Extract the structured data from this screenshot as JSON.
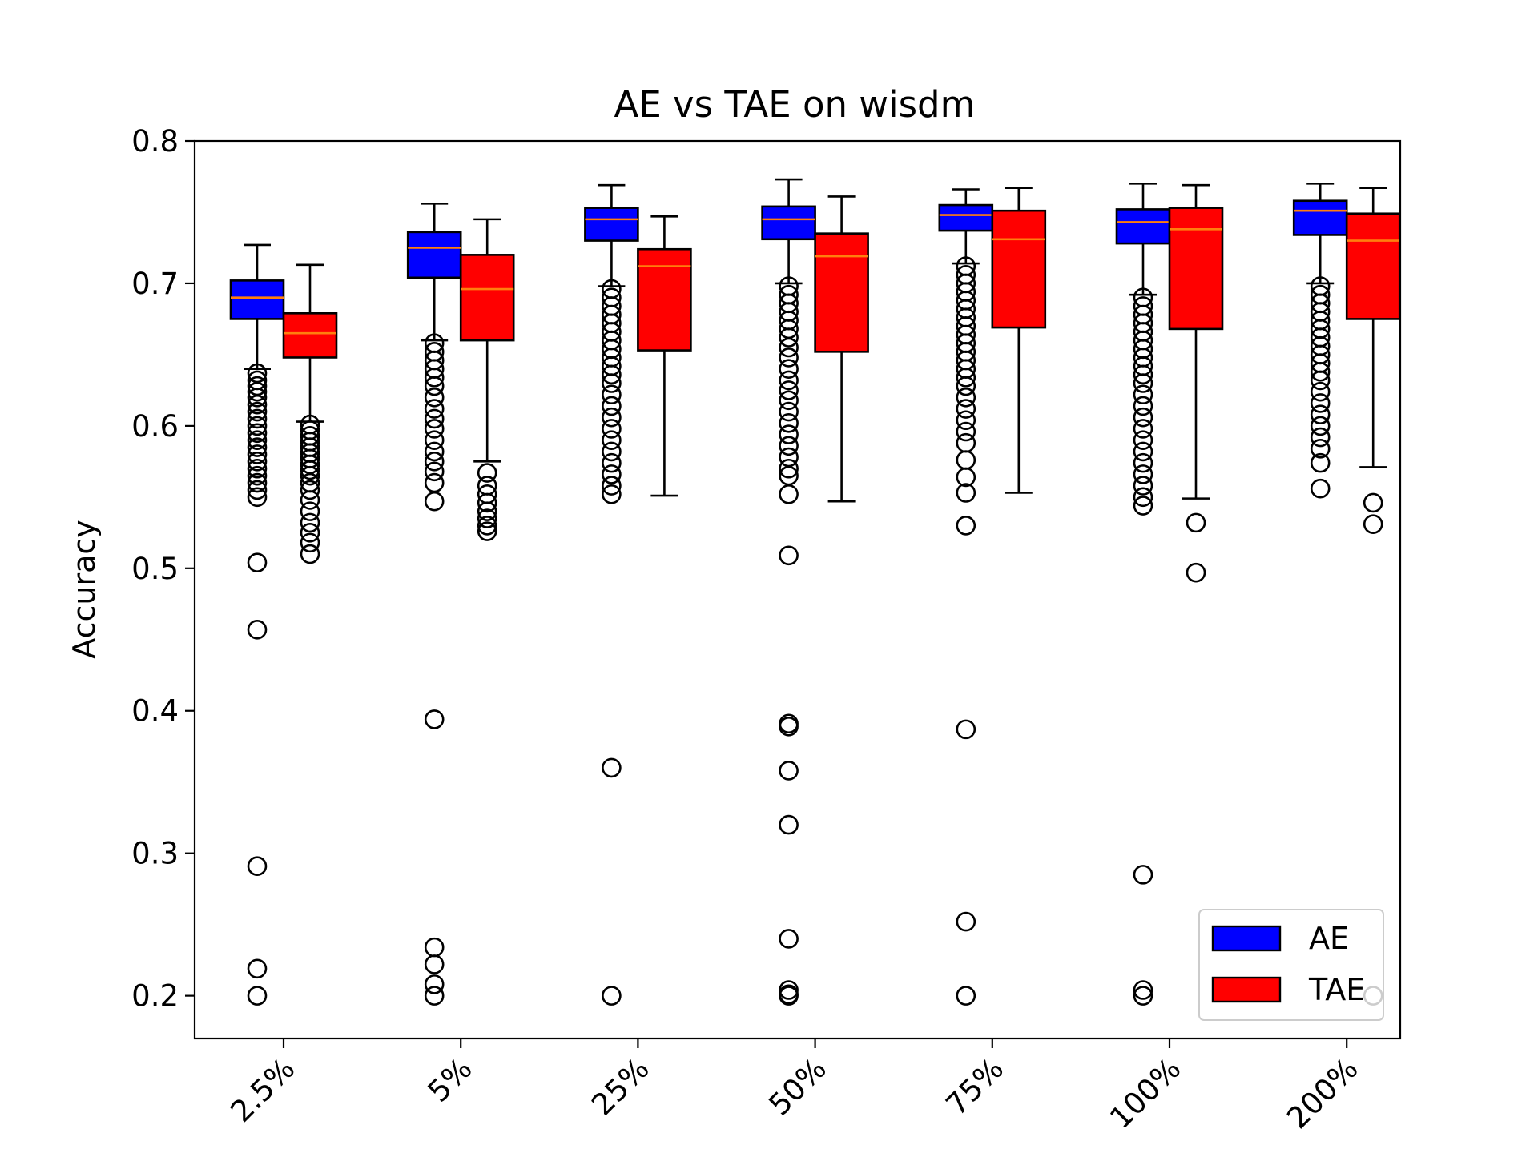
{
  "chart_data": {
    "type": "boxplot",
    "title": "AE vs TAE on wisdm",
    "xlabel": "",
    "ylabel": "Accuracy",
    "ylim": [
      0.17,
      0.8
    ],
    "yticks": [
      0.2,
      0.3,
      0.4,
      0.5,
      0.6,
      0.7,
      0.8
    ],
    "ytick_labels": [
      "0.2",
      "0.3",
      "0.4",
      "0.5",
      "0.6",
      "0.7",
      "0.8"
    ],
    "categories": [
      "2.5%",
      "5%",
      "25%",
      "50%",
      "75%",
      "100%",
      "200%"
    ],
    "grid": false,
    "legend_position": "bottom-right",
    "series": [
      {
        "name": "AE",
        "color": "#0000ff",
        "boxes": [
          {
            "whislo": 0.64,
            "q1": 0.675,
            "med": 0.69,
            "q3": 0.702,
            "whishi": 0.727,
            "fliers": [
              0.637,
              0.632,
              0.628,
              0.624,
              0.62,
              0.615,
              0.61,
              0.605,
              0.6,
              0.595,
              0.59,
              0.585,
              0.58,
              0.575,
              0.57,
              0.565,
              0.56,
              0.555,
              0.55,
              0.504,
              0.457,
              0.291,
              0.219,
              0.2
            ]
          },
          {
            "whislo": 0.66,
            "q1": 0.704,
            "med": 0.725,
            "q3": 0.736,
            "whishi": 0.756,
            "fliers": [
              0.658,
              0.652,
              0.646,
              0.64,
              0.634,
              0.628,
              0.62,
              0.612,
              0.605,
              0.598,
              0.59,
              0.582,
              0.575,
              0.568,
              0.56,
              0.547,
              0.394,
              0.234,
              0.222,
              0.208,
              0.2
            ]
          },
          {
            "whislo": 0.698,
            "q1": 0.73,
            "med": 0.745,
            "q3": 0.753,
            "whishi": 0.769,
            "fliers": [
              0.696,
              0.69,
              0.684,
              0.678,
              0.672,
              0.666,
              0.66,
              0.654,
              0.648,
              0.642,
              0.636,
              0.63,
              0.622,
              0.614,
              0.606,
              0.598,
              0.59,
              0.582,
              0.574,
              0.566,
              0.558,
              0.552,
              0.36,
              0.2
            ]
          },
          {
            "whislo": 0.7,
            "q1": 0.731,
            "med": 0.745,
            "q3": 0.754,
            "whishi": 0.773,
            "fliers": [
              0.698,
              0.692,
              0.686,
              0.68,
              0.674,
              0.668,
              0.662,
              0.655,
              0.648,
              0.64,
              0.632,
              0.625,
              0.618,
              0.61,
              0.602,
              0.594,
              0.586,
              0.578,
              0.57,
              0.565,
              0.552,
              0.509,
              0.391,
              0.389,
              0.358,
              0.32,
              0.24,
              0.204,
              0.201,
              0.2
            ]
          },
          {
            "whislo": 0.714,
            "q1": 0.737,
            "med": 0.748,
            "q3": 0.755,
            "whishi": 0.766,
            "fliers": [
              0.712,
              0.706,
              0.7,
              0.694,
              0.688,
              0.682,
              0.676,
              0.67,
              0.664,
              0.658,
              0.652,
              0.646,
              0.64,
              0.634,
              0.628,
              0.62,
              0.612,
              0.604,
              0.596,
              0.588,
              0.576,
              0.564,
              0.553,
              0.53,
              0.387,
              0.252,
              0.2
            ]
          },
          {
            "whislo": 0.692,
            "q1": 0.728,
            "med": 0.743,
            "q3": 0.752,
            "whishi": 0.77,
            "fliers": [
              0.69,
              0.684,
              0.678,
              0.672,
              0.666,
              0.66,
              0.654,
              0.648,
              0.642,
              0.636,
              0.63,
              0.622,
              0.614,
              0.606,
              0.598,
              0.59,
              0.582,
              0.574,
              0.566,
              0.558,
              0.55,
              0.544,
              0.285,
              0.204,
              0.2
            ]
          },
          {
            "whislo": 0.7,
            "q1": 0.734,
            "med": 0.751,
            "q3": 0.758,
            "whishi": 0.77,
            "fliers": [
              0.698,
              0.692,
              0.686,
              0.68,
              0.674,
              0.668,
              0.662,
              0.656,
              0.65,
              0.644,
              0.638,
              0.632,
              0.624,
              0.616,
              0.608,
              0.6,
              0.592,
              0.584,
              0.574,
              0.556
            ]
          }
        ]
      },
      {
        "name": "TAE",
        "color": "#ff0000",
        "boxes": [
          {
            "whislo": 0.603,
            "q1": 0.648,
            "med": 0.665,
            "q3": 0.679,
            "whishi": 0.713,
            "fliers": [
              0.601,
              0.597,
              0.593,
              0.589,
              0.585,
              0.581,
              0.577,
              0.573,
              0.569,
              0.565,
              0.56,
              0.555,
              0.548,
              0.54,
              0.532,
              0.525,
              0.518,
              0.51
            ]
          },
          {
            "whislo": 0.575,
            "q1": 0.66,
            "med": 0.696,
            "q3": 0.72,
            "whishi": 0.745,
            "fliers": [
              0.567,
              0.558,
              0.552,
              0.546,
              0.54,
              0.535,
              0.53,
              0.526
            ]
          },
          {
            "whislo": 0.551,
            "q1": 0.653,
            "med": 0.712,
            "q3": 0.724,
            "whishi": 0.747,
            "fliers": []
          },
          {
            "whislo": 0.547,
            "q1": 0.652,
            "med": 0.719,
            "q3": 0.735,
            "whishi": 0.761,
            "fliers": []
          },
          {
            "whislo": 0.553,
            "q1": 0.669,
            "med": 0.731,
            "q3": 0.751,
            "whishi": 0.767,
            "fliers": []
          },
          {
            "whislo": 0.549,
            "q1": 0.668,
            "med": 0.738,
            "q3": 0.753,
            "whishi": 0.769,
            "fliers": [
              0.532,
              0.497
            ]
          },
          {
            "whislo": 0.571,
            "q1": 0.675,
            "med": 0.73,
            "q3": 0.749,
            "whishi": 0.767,
            "fliers": [
              0.546,
              0.531,
              0.2
            ]
          }
        ]
      }
    ]
  }
}
